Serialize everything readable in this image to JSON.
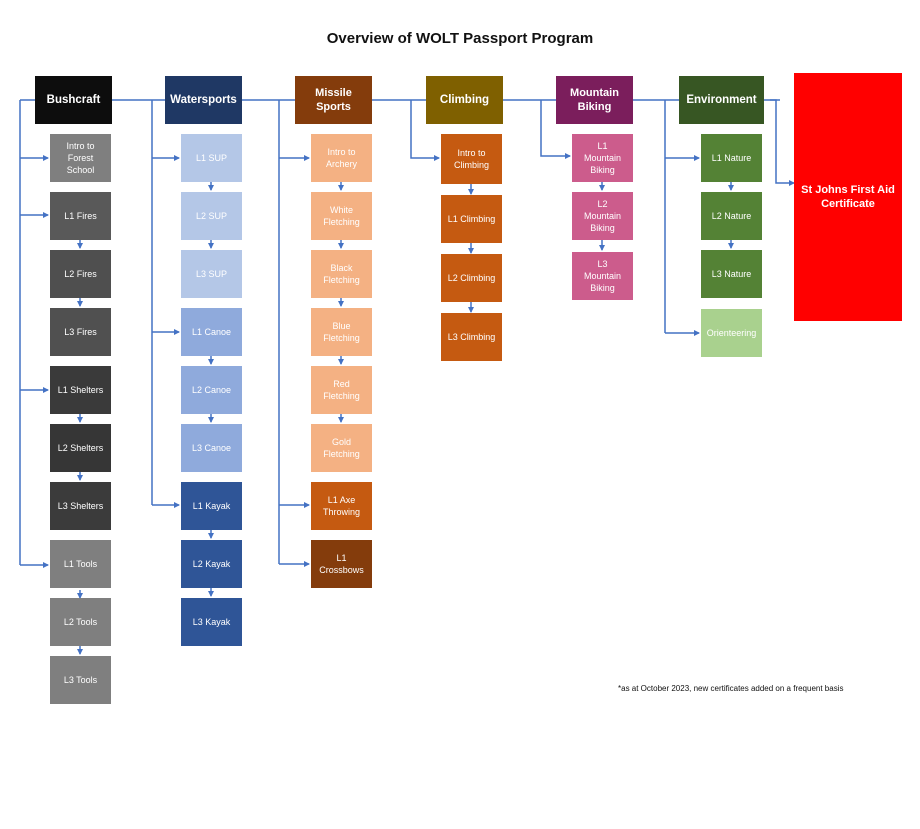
{
  "title": "Overview of WOLT Passport Program",
  "note": "*as at October 2023, new certificates added on a frequent basis",
  "categories": {
    "bushcraft": "Bushcraft",
    "watersports": "Watersports",
    "missile_sports": "Missile\nSports",
    "climbing": "Climbing",
    "mountain_biking": "Mountain\nBiking",
    "environment": "Environment"
  },
  "certificate": "St Johns First Aid\nCertificate",
  "bushcraft": {
    "intro": "Intro to\nForest\nSchool",
    "l1_fires": "L1 Fires",
    "l2_fires": "L2 Fires",
    "l3_fires": "L3 Fires",
    "l1_shelters": "L1 Shelters",
    "l2_shelters": "L2 Shelters",
    "l3_shelters": "L3 Shelters",
    "l1_tools": "L1 Tools",
    "l2_tools": "L2 Tools",
    "l3_tools": "L3 Tools"
  },
  "watersports": {
    "l1_sup": "L1 SUP",
    "l2_sup": "L2 SUP",
    "l3_sup": "L3 SUP",
    "l1_canoe": "L1 Canoe",
    "l2_canoe": "L2 Canoe",
    "l3_canoe": "L3 Canoe",
    "l1_kayak": "L1 Kayak",
    "l2_kayak": "L2 Kayak",
    "l3_kayak": "L3 Kayak"
  },
  "missile": {
    "intro_archery": "Intro to\nArchery",
    "white": "White\nFletching",
    "black": "Black\nFletching",
    "blue": "Blue\nFletching",
    "red": "Red\nFletching",
    "gold": "Gold\nFletching",
    "axe": "L1 Axe\nThrowing",
    "crossbows": "L1\nCrossbows"
  },
  "climbing": {
    "intro": "Intro to\nClimbing",
    "l1": "L1 Climbing",
    "l2": "L2 Climbing",
    "l3": "L3 Climbing"
  },
  "mtb": {
    "l1": "L1\nMountain\nBiking",
    "l2": "L2\nMountain\nBiking",
    "l3": "L3\nMountain\nBiking"
  },
  "environment": {
    "l1": "L1 Nature",
    "l2": "L2 Nature",
    "l3": "L3 Nature",
    "orienteering": "Orienteering"
  },
  "colors": {
    "line": "#4472c4",
    "bushcraft_header": "#0d0d0d",
    "watersports_header": "#1f3864",
    "missile_header": "#843c0c",
    "climbing_header": "#7f6000",
    "mtb_header": "#7b1e5c",
    "environment_header": "#375623",
    "certificate": "#ff0000"
  }
}
